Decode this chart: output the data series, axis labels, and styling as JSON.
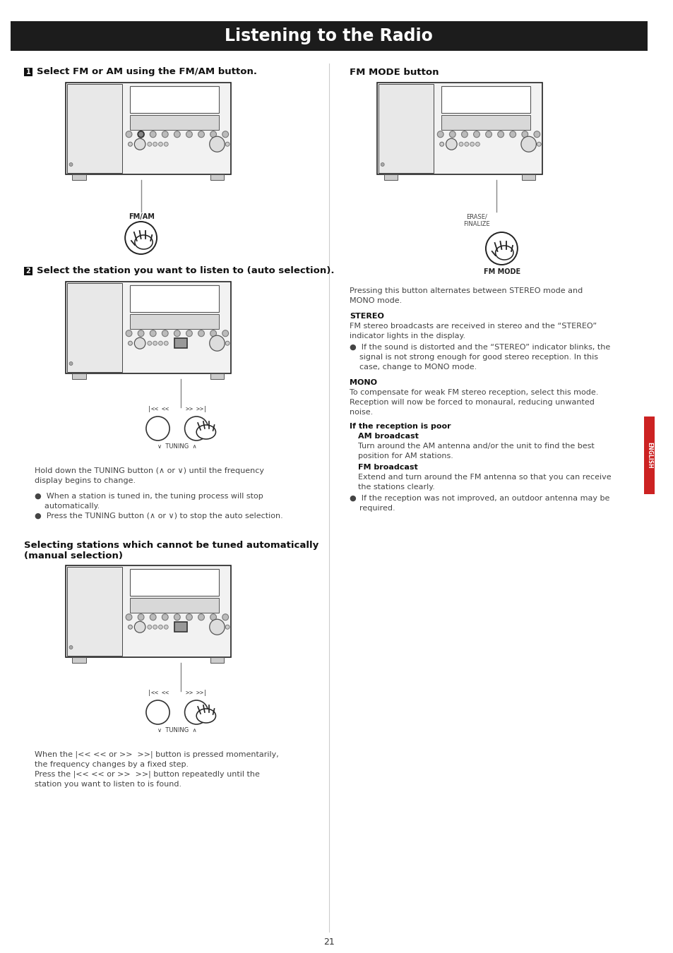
{
  "title": "Listening to the Radio",
  "title_bg": "#1c1c1c",
  "title_color": "#ffffff",
  "title_fontsize": 17,
  "page_number": "21",
  "bg_color": "#ffffff",
  "section1_header": "1  Select FM or AM using the FM/AM button.",
  "section2_header": "2  Select the station you want to listen to (auto selection).",
  "section3_header": "Selecting stations which cannot be tuned automatically\n(manual selection)",
  "section_header_fontsize": 9.5,
  "fm_mode_header": "FM MODE button",
  "body_fontsize": 8.0,
  "body_color": "#444444",
  "bold_label_color": "#000000",
  "text_hold_down": "Hold down the TUNING button (∧ or ∨) until the frequency\ndisplay begins to change.",
  "text_bullet1": "●  When a station is tuned in, the tuning process will stop\n    automatically.",
  "text_bullet2": "●  Press the TUNING button (∧ or ∨) to stop the auto selection.",
  "text_manual1": "When the |<< << or >>  >>| button is pressed momentarily,\nthe frequency changes by a fixed step.",
  "text_manual2": "Press the |<< << or >>  >>| button repeatedly until the\nstation you want to listen to is found.",
  "fm_mode_desc": "Pressing this button alternates between STEREO mode and\nMONO mode.",
  "stereo_header": "STEREO",
  "stereo_text": "FM stereo broadcasts are received in stereo and the “STEREO”\nindicator lights in the display.",
  "stereo_bullet": "●  If the sound is distorted and the “STEREO” indicator blinks, the\n    signal is not strong enough for good stereo reception. In this\n    case, change to MONO mode.",
  "mono_header": "MONO",
  "mono_text": "To compensate for weak FM stereo reception, select this mode.\nReception will now be forced to monaural, reducing unwanted\nnoise.",
  "reception_header": "If the reception is poor",
  "am_broadcast_header": "AM broadcast",
  "am_broadcast_text": "Turn around the AM antenna and/or the unit to find the best\nposition for AM stations.",
  "fm_broadcast_header": "FM broadcast",
  "fm_broadcast_text": "Extend and turn around the FM antenna so that you can receive\nthe stations clearly.",
  "reception_bullet": "●  If the reception was not improved, an outdoor antenna may be\n    required.",
  "english_tab_color": "#cc2222",
  "english_tab_text": "ENGLISH",
  "divider_color": "#cccccc",
  "line_color": "#888888"
}
